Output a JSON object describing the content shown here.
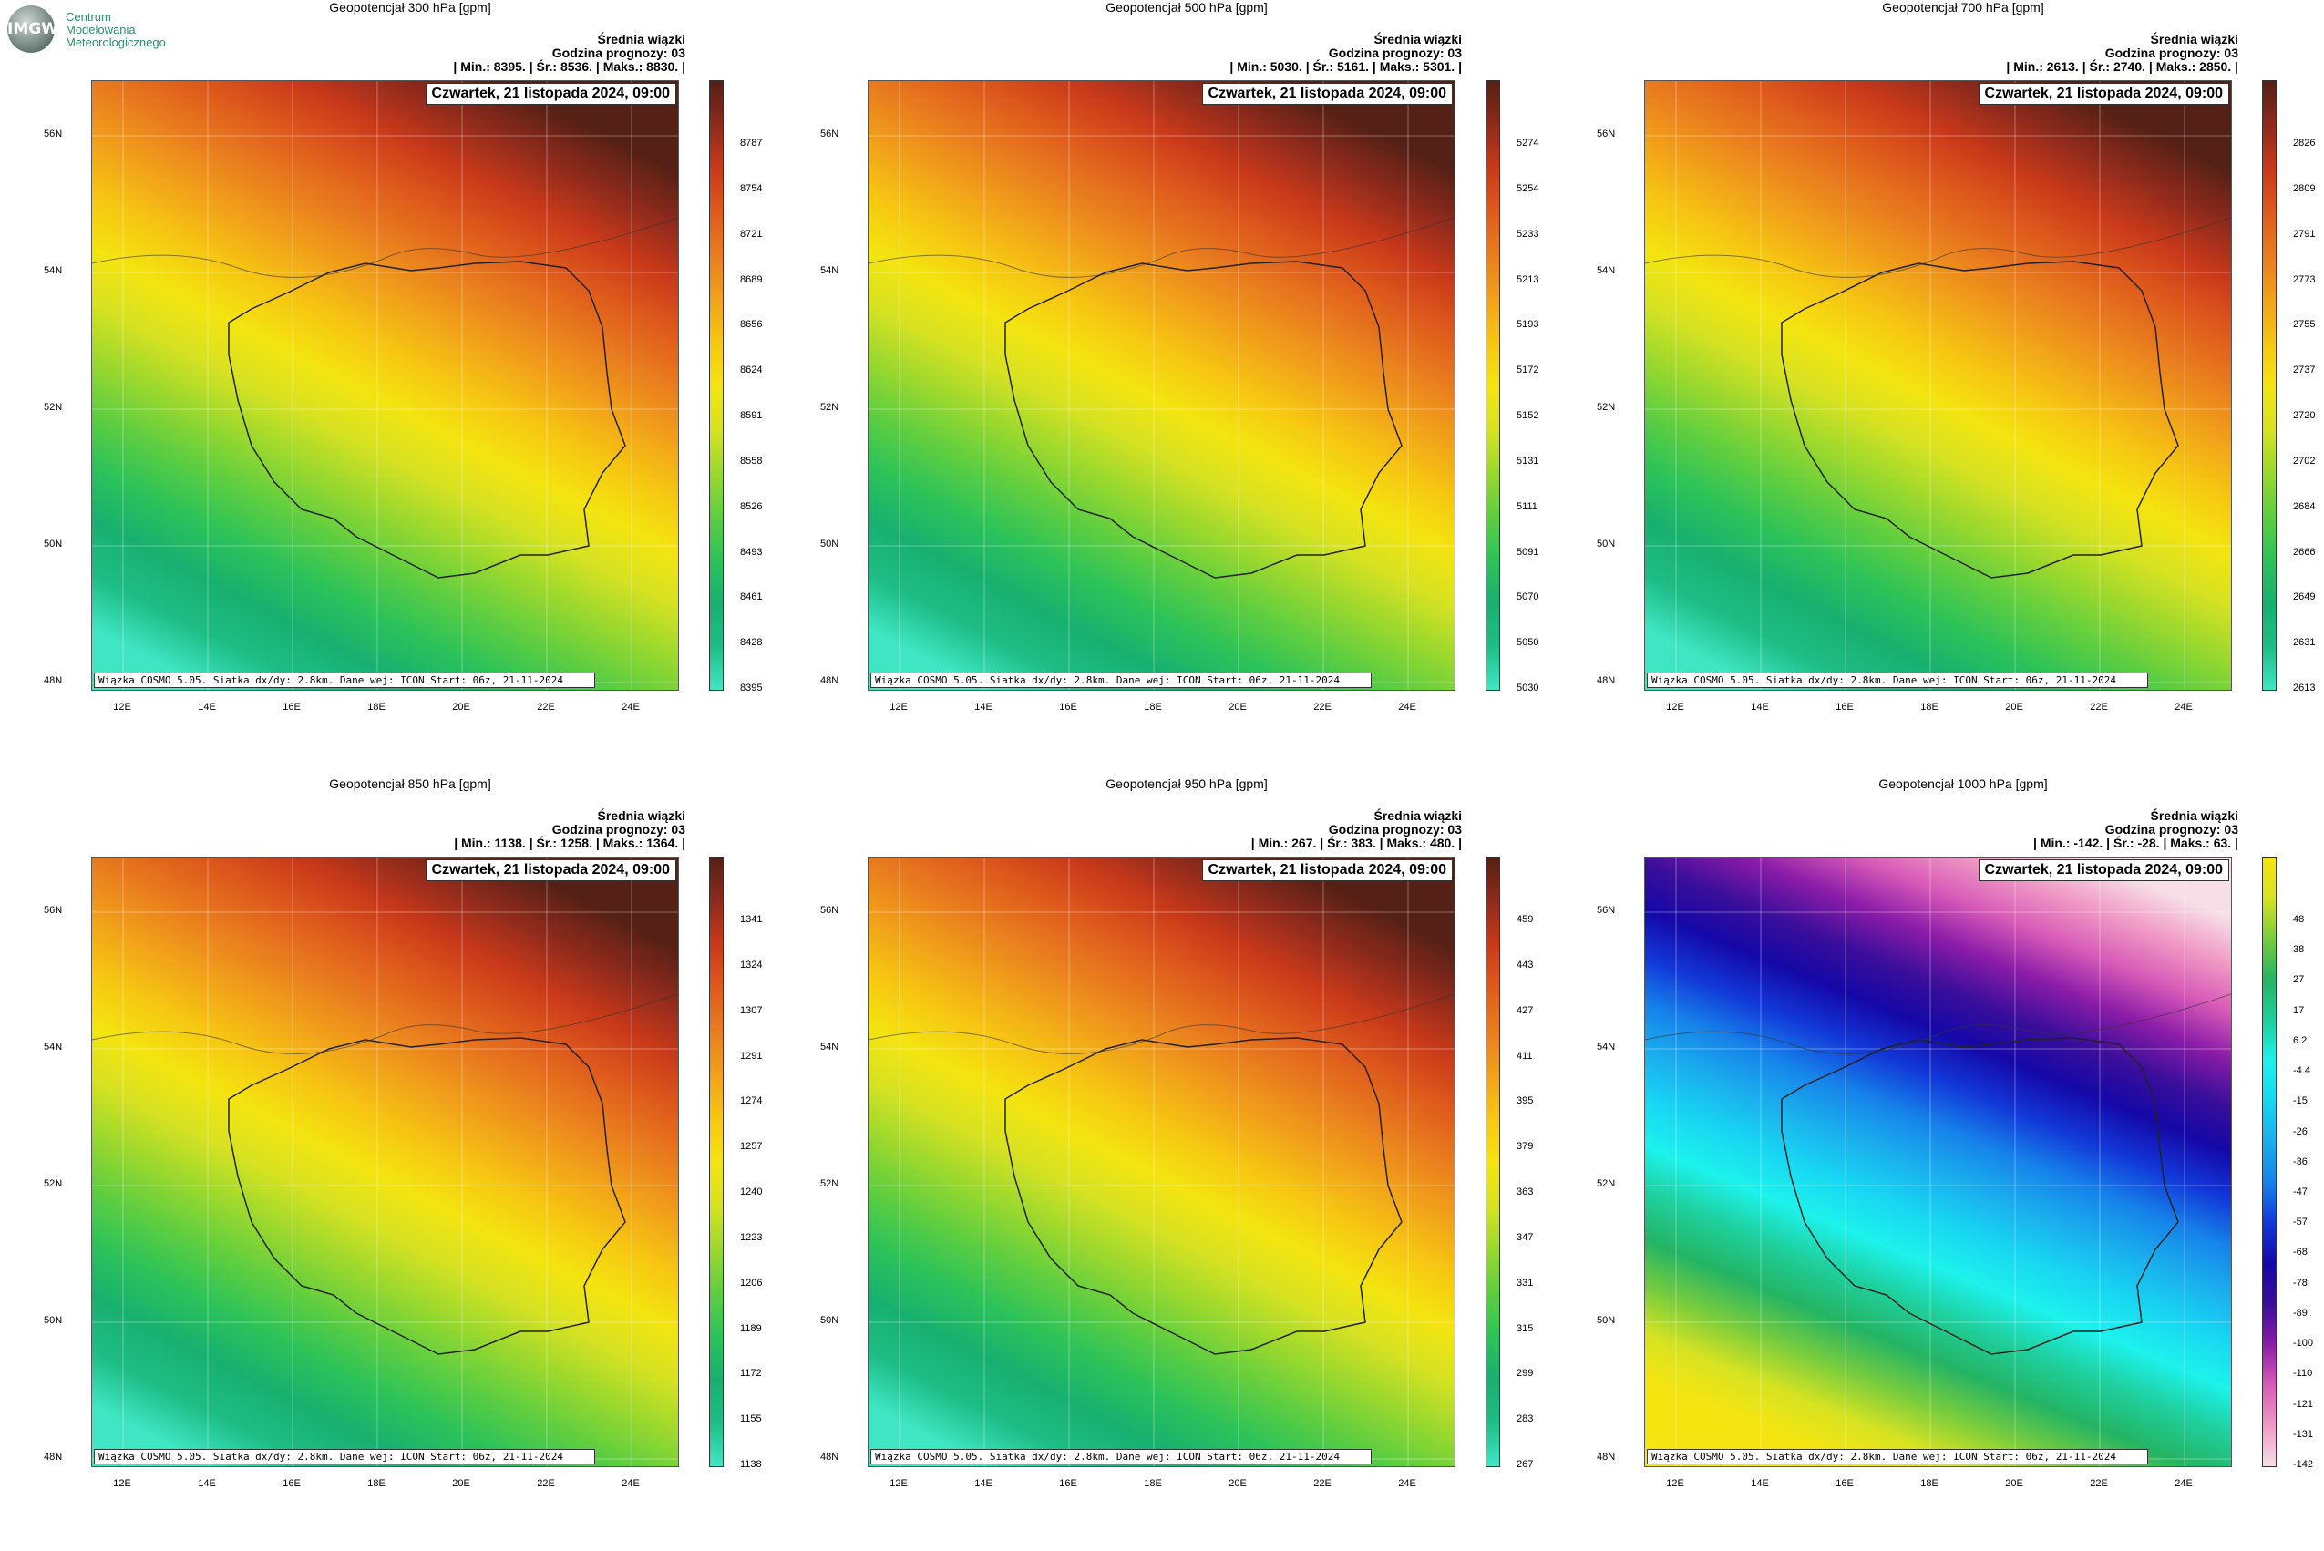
{
  "logo": {
    "short": "IMGW",
    "line1": "Centrum",
    "line2": "Modelowania",
    "line3": "Meteorologicznego"
  },
  "footer_text": "Wiązka COSMO 5.05. Siatka dx/dy: 2.8km. Dane wej: ICON Start: 06z, 21-11-2024",
  "date_text": "Czwartek, 21 listopada 2024, 09:00",
  "header_line1": "Średnia wiązki",
  "header_line2": "Godzina prognozy: 03",
  "lat_labels": [
    "56N",
    "54N",
    "52N",
    "50N",
    "48N"
  ],
  "lon_labels": [
    "12E",
    "14E",
    "16E",
    "18E",
    "20E",
    "22E",
    "24E"
  ],
  "panels": [
    {
      "title": "Geopotencjał 300 hPa [gpm]",
      "stats": "| Min.:  8395. | Śr.:  8536. | Maks.:  8830. |",
      "palette": "gyor",
      "colorbar": [
        "8787",
        "8754",
        "8721",
        "8689",
        "8656",
        "8624",
        "8591",
        "8558",
        "8526",
        "8493",
        "8461",
        "8428",
        "8395"
      ]
    },
    {
      "title": "Geopotencjał 500 hPa [gpm]",
      "stats": "| Min.:  5030. | Śr.:  5161. | Maks.:  5301. |",
      "palette": "gyor",
      "colorbar": [
        "5274",
        "5254",
        "5233",
        "5213",
        "5193",
        "5172",
        "5152",
        "5131",
        "5111",
        "5091",
        "5070",
        "5050",
        "5030"
      ]
    },
    {
      "title": "Geopotencjał 700 hPa [gpm]",
      "stats": "| Min.:  2613. | Śr.:  2740. | Maks.:  2850. |",
      "palette": "gyor",
      "colorbar": [
        "2826",
        "2809",
        "2791",
        "2773",
        "2755",
        "2737",
        "2720",
        "2702",
        "2684",
        "2666",
        "2649",
        "2631",
        "2613"
      ]
    },
    {
      "title": "Geopotencjał 850 hPa [gpm]",
      "stats": "| Min.:  1138. | Śr.:  1258. | Maks.:  1364. |",
      "palette": "gyor",
      "colorbar": [
        "1341",
        "1324",
        "1307",
        "1291",
        "1274",
        "1257",
        "1240",
        "1223",
        "1206",
        "1189",
        "1172",
        "1155",
        "1138"
      ]
    },
    {
      "title": "Geopotencjał 950 hPa [gpm]",
      "stats": "| Min.:  267. | Śr.:  383. | Maks.:  480. |",
      "palette": "gyor",
      "colorbar": [
        "459",
        "443",
        "427",
        "411",
        "395",
        "379",
        "363",
        "347",
        "331",
        "315",
        "299",
        "283",
        "267"
      ]
    },
    {
      "title": "Geopotencjał 1000 hPa [gpm]",
      "stats": "| Min.:  -142. | Śr.:  -28. | Maks.:  63. |",
      "palette": "blue",
      "colorbar": [
        "48",
        "38",
        "27",
        "17",
        "6.2",
        "-4.4",
        "-15",
        "-26",
        "-36",
        "-47",
        "-57",
        "-68",
        "-78",
        "-89",
        "-100",
        "-110",
        "-121",
        "-131",
        "-142"
      ]
    }
  ]
}
